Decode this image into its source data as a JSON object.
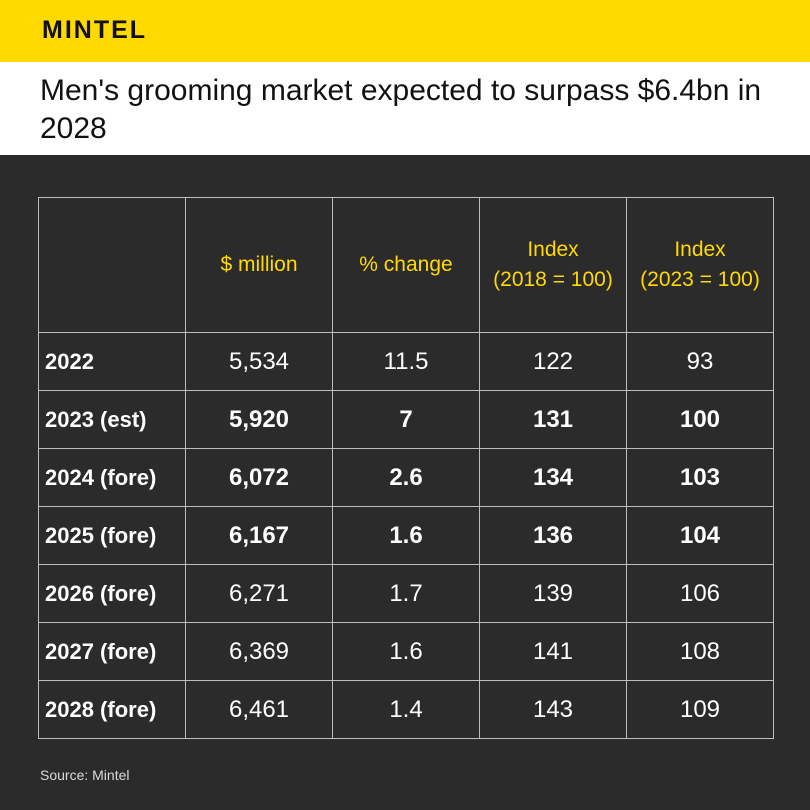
{
  "brand": {
    "logo_text": "MINTEL",
    "accent": "#ffd900"
  },
  "title": "Men's grooming market expected to surpass $6.4bn in 2028",
  "source": "Source: Mintel",
  "chart_data": {
    "type": "table",
    "columns": [
      "",
      "$ million",
      "% change",
      "Index (2018 = 100)",
      "Index (2023 = 100)"
    ],
    "column_parts": [
      [
        ""
      ],
      [
        "$ million"
      ],
      [
        "% change"
      ],
      [
        "Index",
        "(2018 = 100)"
      ],
      [
        "Index",
        "(2023 = 100)"
      ]
    ],
    "rows": [
      {
        "label": "2022",
        "values": [
          "5,534",
          "11.5",
          "122",
          "93"
        ],
        "bold": false
      },
      {
        "label": "2023 (est)",
        "values": [
          "5,920",
          "7",
          "131",
          "100"
        ],
        "bold": true
      },
      {
        "label": "2024 (fore)",
        "values": [
          "6,072",
          "2.6",
          "134",
          "103"
        ],
        "bold": true
      },
      {
        "label": "2025 (fore)",
        "values": [
          "6,167",
          "1.6",
          "136",
          "104"
        ],
        "bold": true
      },
      {
        "label": "2026 (fore)",
        "values": [
          "6,271",
          "1.7",
          "139",
          "106"
        ],
        "bold": false
      },
      {
        "label": "2027 (fore)",
        "values": [
          "6,369",
          "1.6",
          "141",
          "108"
        ],
        "bold": false
      },
      {
        "label": "2028 (fore)",
        "values": [
          "6,461",
          "1.4",
          "143",
          "109"
        ],
        "bold": false
      }
    ]
  }
}
